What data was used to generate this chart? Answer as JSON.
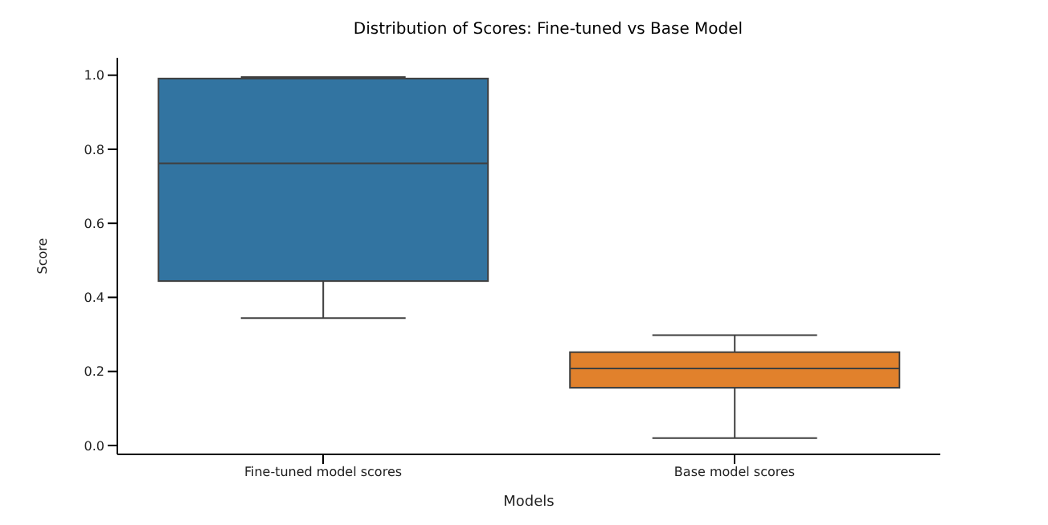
{
  "chart_data": {
    "type": "box",
    "title": "Distribution of Scores: Fine-tuned vs Base Model",
    "xlabel": "Models",
    "ylabel": "Score",
    "categories": [
      "Fine-tuned model scores",
      "Base model scores"
    ],
    "colors": [
      "#3274a1",
      "#e1812c"
    ],
    "boxes": [
      {
        "low": 0.344,
        "q1": 0.444,
        "median": 0.762,
        "q3": 0.991,
        "high": 0.995
      },
      {
        "low": 0.02,
        "q1": 0.156,
        "median": 0.208,
        "q3": 0.252,
        "high": 0.298
      }
    ],
    "ylim": [
      -0.024,
      1.047
    ],
    "yticks": [
      {
        "value": 0,
        "label": "0.0"
      },
      {
        "value": 0.2,
        "label": "0.2"
      },
      {
        "value": 0.4,
        "label": "0.4"
      },
      {
        "value": 0.6,
        "label": "0.6"
      },
      {
        "value": 0.8,
        "label": "0.8"
      },
      {
        "value": 1,
        "label": "1.0"
      }
    ],
    "grid": false,
    "legend": false
  }
}
